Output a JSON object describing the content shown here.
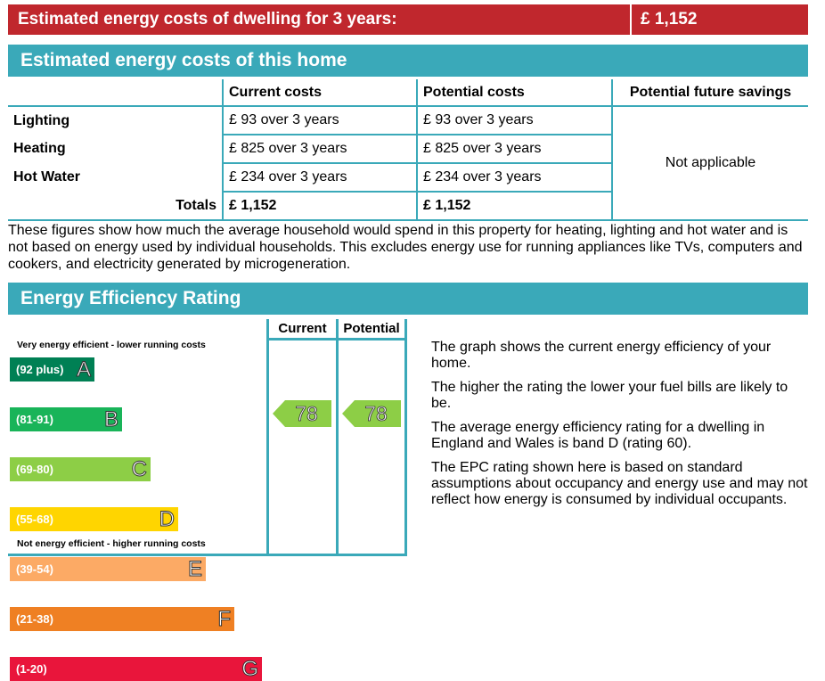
{
  "banner": {
    "label": "Estimated energy costs of dwelling for 3 years:",
    "total": "£ 1,152"
  },
  "costs_section": {
    "title": "Estimated energy costs of this home",
    "columns": [
      "",
      "Current costs",
      "Potential costs",
      "Potential future savings"
    ],
    "rows": [
      {
        "label": "Lighting",
        "current": "£ 93 over 3 years",
        "potential": "£ 93 over 3 years"
      },
      {
        "label": "Heating",
        "current": "£ 825 over 3 years",
        "potential": "£ 825 over 3 years"
      },
      {
        "label": "Hot Water",
        "current": "£ 234 over 3 years",
        "potential": "£ 234 over 3 years"
      }
    ],
    "totals": {
      "label": "Totals",
      "current": "£ 1,152",
      "potential": "£ 1,152"
    },
    "savings": "Not applicable",
    "explanation": "These figures show how much the average household would spend in this property for heating, lighting and hot water and is not based on energy used by individual households. This excludes energy use for running appliances like TVs, computers and cookers, and electricity generated by microgeneration."
  },
  "rating_section": {
    "title": "Energy Efficiency Rating",
    "col_current": "Current",
    "col_potential": "Potential",
    "top_note": "Very energy efficient - lower running costs",
    "bottom_note": "Not energy efficient - higher running costs",
    "bands": [
      {
        "range": "(92 plus)",
        "letter": "A",
        "color": "#008054"
      },
      {
        "range": "(81-91)",
        "letter": "B",
        "color": "#19b459"
      },
      {
        "range": "(69-80)",
        "letter": "C",
        "color": "#8dce46"
      },
      {
        "range": "(55-68)",
        "letter": "D",
        "color": "#ffd500"
      },
      {
        "range": "(39-54)",
        "letter": "E",
        "color": "#fcaa65"
      },
      {
        "range": "(21-38)",
        "letter": "F",
        "color": "#ef8023"
      },
      {
        "range": "(1-20)",
        "letter": "G",
        "color": "#e9153b"
      }
    ],
    "current_rating": "78",
    "potential_rating": "78",
    "arrow_color": "#8dce46",
    "info": [
      "The graph shows the current energy efficiency of your home.",
      "The higher the rating the lower your fuel bills are likely to be.",
      "The average energy efficiency rating for a dwelling in England and Wales is band D (rating 60).",
      "The EPC rating shown here is based on standard assumptions about occupancy and energy use and may not reflect how energy is consumed by individual occupants."
    ]
  }
}
